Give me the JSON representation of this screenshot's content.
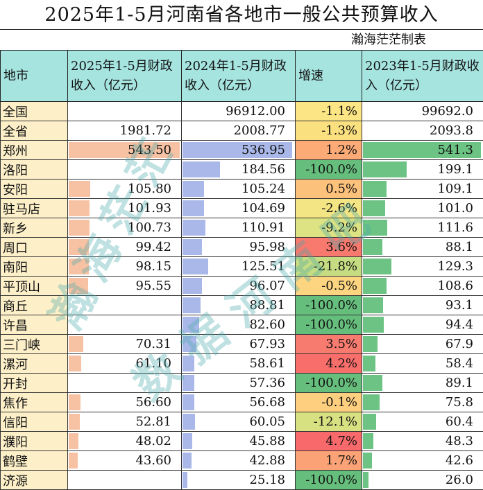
{
  "title": "2025年1-5月河南省各地市一般公共预算收入",
  "subtitle": "瀚海茫茫制表",
  "watermark": [
    "瀚海茫茫",
    "数据河南吧"
  ],
  "headers": {
    "city": "地市",
    "rev2025": "2025年1-5月财政收入（亿元）",
    "rev2024": "2024年1-5月财政收入（亿元）",
    "growth": "增速",
    "rev2023": "2023年1-5月财政收入（亿元）"
  },
  "colors": {
    "header_bg": "#a6e4e0",
    "city_bg": "#fdf0c9",
    "bar_2025": "#f7c2a4",
    "bar_2024": "#a9b8e8",
    "bar_2023": "#6cc384"
  },
  "rows": [
    {
      "city": "全国",
      "rev2025": "",
      "rev2024": "96912.00",
      "growth": "-1.1%",
      "rev2023": "99692.0",
      "bar25": 0,
      "bar24": 0,
      "bar23": 0,
      "gcolor": "#fbe584"
    },
    {
      "city": "全省",
      "rev2025": "1981.72",
      "rev2024": "2008.77",
      "growth": "-1.3%",
      "rev2023": "2093.8",
      "bar25": 0,
      "bar24": 0,
      "bar23": 0,
      "gcolor": "#fbe07f"
    },
    {
      "city": "郑州",
      "rev2025": "543.50",
      "rev2024": "536.95",
      "growth": "1.2%",
      "rev2023": "541.3",
      "bar25": 543.5,
      "bar24": 536.95,
      "bar23": 541.3,
      "gcolor": "#fcaa76"
    },
    {
      "city": "洛阳",
      "rev2025": "",
      "rev2024": "184.56",
      "growth": "-100.0%",
      "rev2023": "199.1",
      "bar25": 0,
      "bar24": 184.56,
      "bar23": 199.1,
      "gcolor": "#66be7d"
    },
    {
      "city": "安阳",
      "rev2025": "105.80",
      "rev2024": "105.24",
      "growth": "0.5%",
      "rev2023": "109.1",
      "bar25": 105.8,
      "bar24": 105.24,
      "bar23": 109.1,
      "gcolor": "#fcc17b"
    },
    {
      "city": "驻马店",
      "rev2025": "101.93",
      "rev2024": "104.69",
      "growth": "-2.6%",
      "rev2023": "101.0",
      "bar25": 101.93,
      "bar24": 104.69,
      "bar23": 101.0,
      "gcolor": "#f4e584"
    },
    {
      "city": "新乡",
      "rev2025": "100.73",
      "rev2024": "110.91",
      "growth": "-9.2%",
      "rev2023": "111.6",
      "bar25": 100.73,
      "bar24": 110.91,
      "bar23": 111.6,
      "gcolor": "#dde283"
    },
    {
      "city": "周口",
      "rev2025": "99.42",
      "rev2024": "95.98",
      "growth": "3.6%",
      "rev2023": "88.1",
      "bar25": 99.42,
      "bar24": 95.98,
      "bar23": 88.1,
      "gcolor": "#f8796e"
    },
    {
      "city": "南阳",
      "rev2025": "98.15",
      "rev2024": "125.51",
      "growth": "-21.8%",
      "rev2023": "129.3",
      "bar25": 98.15,
      "bar24": 125.51,
      "bar23": 129.3,
      "gcolor": "#c6dc82"
    },
    {
      "city": "平顶山",
      "rev2025": "95.55",
      "rev2024": "96.07",
      "growth": "-0.5%",
      "rev2023": "108.6",
      "bar25": 95.55,
      "bar24": 96.07,
      "bar23": 108.6,
      "gcolor": "#fdd580"
    },
    {
      "city": "商丘",
      "rev2025": "",
      "rev2024": "88.81",
      "growth": "-100.0%",
      "rev2023": "93.1",
      "bar25": 0,
      "bar24": 88.81,
      "bar23": 93.1,
      "gcolor": "#66be7d"
    },
    {
      "city": "许昌",
      "rev2025": "",
      "rev2024": "82.60",
      "growth": "-100.0%",
      "rev2023": "94.4",
      "bar25": 0,
      "bar24": 82.6,
      "bar23": 94.4,
      "gcolor": "#66be7d"
    },
    {
      "city": "三门峡",
      "rev2025": "70.31",
      "rev2024": "67.93",
      "growth": "3.5%",
      "rev2023": "67.9",
      "bar25": 70.31,
      "bar24": 67.93,
      "bar23": 67.9,
      "gcolor": "#f87b6f"
    },
    {
      "city": "漯河",
      "rev2025": "61.10",
      "rev2024": "58.61",
      "growth": "4.2%",
      "rev2023": "58.4",
      "bar25": 61.1,
      "bar24": 58.61,
      "bar23": 58.4,
      "gcolor": "#f86e6b"
    },
    {
      "city": "开封",
      "rev2025": "",
      "rev2024": "57.36",
      "growth": "-100.0%",
      "rev2023": "89.1",
      "bar25": 0,
      "bar24": 57.36,
      "bar23": 89.1,
      "gcolor": "#66be7d"
    },
    {
      "city": "焦作",
      "rev2025": "56.60",
      "rev2024": "56.68",
      "growth": "-0.1%",
      "rev2023": "75.8",
      "bar25": 56.6,
      "bar24": 56.68,
      "bar23": 75.8,
      "gcolor": "#fdcf7e"
    },
    {
      "city": "信阳",
      "rev2025": "52.81",
      "rev2024": "60.05",
      "growth": "-12.1%",
      "rev2023": "60.4",
      "bar25": 52.81,
      "bar24": 60.05,
      "bar23": 60.4,
      "gcolor": "#d8e182"
    },
    {
      "city": "濮阳",
      "rev2025": "48.02",
      "rev2024": "45.88",
      "growth": "4.7%",
      "rev2023": "48.3",
      "bar25": 48.02,
      "bar24": 45.88,
      "bar23": 48.3,
      "gcolor": "#f8696b"
    },
    {
      "city": "鹤壁",
      "rev2025": "43.60",
      "rev2024": "42.88",
      "growth": "1.7%",
      "rev2023": "42.6",
      "bar25": 43.6,
      "bar24": 42.88,
      "bar23": 42.6,
      "gcolor": "#fba276"
    },
    {
      "city": "济源",
      "rev2025": "",
      "rev2024": "25.18",
      "growth": "-100.0%",
      "rev2023": "26.0",
      "bar25": 0,
      "bar24": 25.18,
      "bar23": 26.0,
      "gcolor": "#66be7d"
    }
  ]
}
